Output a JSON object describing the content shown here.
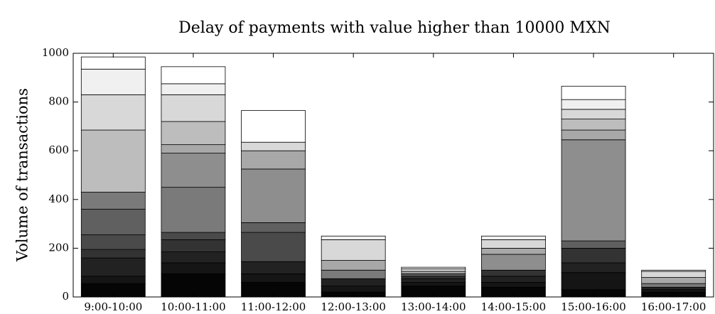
{
  "chart_data": {
    "type": "stacked_bar",
    "title": "Delay of payments with value higher than 10000 MXN",
    "ylabel": "Volume of transactions",
    "categories": [
      "9:00-10:00",
      "10:00-11:00",
      "11:00-12:00",
      "12:00-13:00",
      "13:00-14:00",
      "14:00-15:00",
      "15:00-16:00",
      "16:00-17:00"
    ],
    "series": [
      {
        "color": "#050505",
        "values": [
          55,
          95,
          60,
          20,
          45,
          40,
          30,
          20
        ]
      },
      {
        "color": "#151515",
        "values": [
          30,
          45,
          35,
          25,
          15,
          20,
          70,
          10
        ]
      },
      {
        "color": "#222222",
        "values": [
          75,
          45,
          50,
          30,
          15,
          25,
          40,
          10
        ]
      },
      {
        "color": "#333333",
        "values": [
          35,
          50,
          0,
          0,
          10,
          25,
          60,
          0
        ]
      },
      {
        "color": "#4a4a4a",
        "values": [
          60,
          30,
          120,
          0,
          0,
          0,
          0,
          0
        ]
      },
      {
        "color": "#606060",
        "values": [
          105,
          0,
          40,
          0,
          10,
          0,
          30,
          0
        ]
      },
      {
        "color": "#7a7a7a",
        "values": [
          70,
          185,
          0,
          35,
          0,
          0,
          0,
          15
        ]
      },
      {
        "color": "#8e8e8e",
        "values": [
          0,
          140,
          220,
          0,
          0,
          65,
          415,
          0
        ]
      },
      {
        "color": "#a8a8a8",
        "values": [
          0,
          35,
          75,
          40,
          10,
          25,
          40,
          25
        ]
      },
      {
        "color": "#bdbdbd",
        "values": [
          255,
          95,
          0,
          0,
          0,
          0,
          45,
          0
        ]
      },
      {
        "color": "#d8d8d8",
        "values": [
          145,
          110,
          35,
          85,
          10,
          35,
          40,
          25
        ]
      },
      {
        "color": "#f0f0f0",
        "values": [
          105,
          45,
          0,
          15,
          7,
          15,
          40,
          5
        ]
      },
      {
        "color": "#ffffff",
        "values": [
          50,
          70,
          130,
          0,
          0,
          0,
          55,
          0
        ]
      }
    ],
    "ylim": [
      0,
      1000
    ],
    "yticks": [
      0,
      200,
      400,
      600,
      800,
      1000
    ]
  }
}
